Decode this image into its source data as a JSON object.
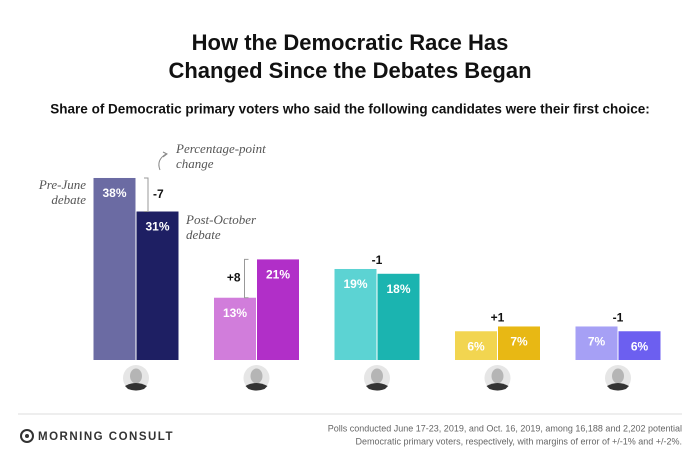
{
  "chart_data": {
    "type": "bar",
    "title": [
      "How the Democratic Race Has",
      "Changed Since the Debates Began"
    ],
    "subtitle": "Share of Democratic primary voters who said the following candidates were their first choice:",
    "categories": [
      null,
      null,
      null,
      null,
      null
    ],
    "series": [
      {
        "name": "Pre-June debate",
        "values": [
          38,
          13,
          19,
          6,
          7
        ],
        "value_labels": [
          "38%",
          "13%",
          "19%",
          "6%",
          "7%"
        ],
        "colors": [
          "#6b6ba3",
          "#d17ddb",
          "#5cd3d3",
          "#f2d550",
          "#a6a0f5"
        ]
      },
      {
        "name": "Post-October debate",
        "values": [
          31,
          21,
          18,
          7,
          6
        ],
        "value_labels": [
          "31%",
          "21%",
          "18%",
          "7%",
          "6%"
        ],
        "colors": [
          "#1e1f63",
          "#b12fc8",
          "#1bb4b0",
          "#e8b814",
          "#6c5ff0"
        ]
      }
    ],
    "change_title": "Percentage-point change",
    "changes": [
      -7,
      8,
      -1,
      1,
      -1
    ],
    "change_labels": [
      "-7",
      "+8",
      "-1",
      "+1",
      "-1"
    ],
    "ylim": [
      0,
      40
    ],
    "brand": "MORNING CONSULT",
    "note": [
      "Polls conducted June 17-23, 2019, and Oct. 16, 2019, among 16,188 and 2,202 potential",
      "Democratic primary voters, respectively, with margins of error of +/-1% and +/-2%."
    ]
  }
}
